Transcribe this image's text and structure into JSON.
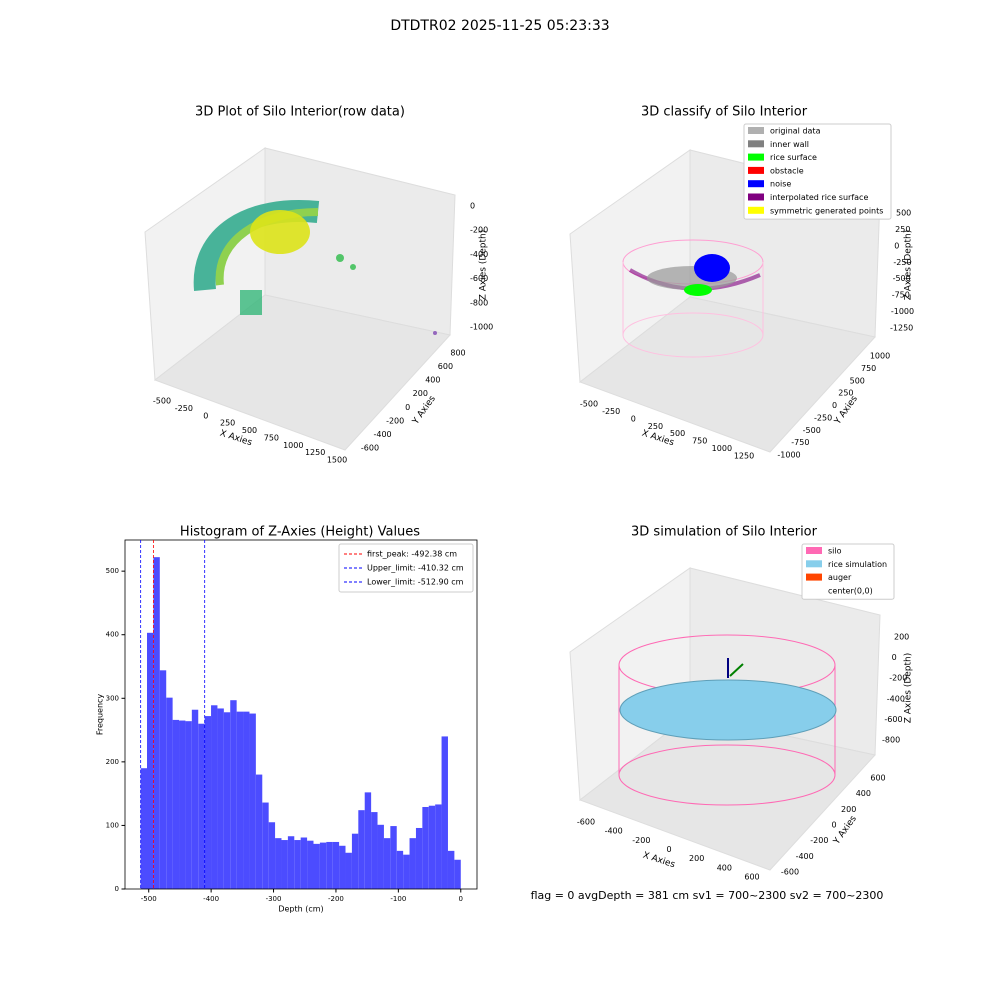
{
  "title": "DTDTR02 2025-11-25 05:23:33",
  "footer": "flag = 0     avgDepth = 381 cm  sv1 = 700~2300  sv2 = 700~2300",
  "chart_data": [
    {
      "type": "3d",
      "title": "3D Plot of Silo Interior(row data)",
      "axes": {
        "x": {
          "label": "X Axies",
          "ticks": [
            -500,
            -250,
            0,
            250,
            500,
            750,
            1000,
            1250,
            1500
          ]
        },
        "y": {
          "label": "Y Axies",
          "ticks": [
            -600,
            -400,
            -200,
            0,
            200,
            400,
            600,
            800
          ]
        },
        "z": {
          "label": "Z Axies (Depth)",
          "ticks": [
            0,
            -200,
            -400,
            -600,
            -800,
            -1000
          ]
        }
      }
    },
    {
      "type": "3d",
      "title": "3D classify of Silo Interior",
      "axes": {
        "x": {
          "label": "X Axies",
          "ticks": [
            -500,
            -250,
            0,
            250,
            500,
            750,
            1000,
            1250
          ]
        },
        "y": {
          "label": "Y Axies",
          "ticks": [
            -1000,
            -750,
            -500,
            -250,
            0,
            250,
            500,
            750,
            1000
          ]
        },
        "z": {
          "label": "Z Axies (Depth)",
          "ticks": [
            500,
            250,
            0,
            -250,
            -500,
            -750,
            -1000,
            -1250
          ]
        }
      },
      "legend": [
        {
          "name": "original data",
          "color": "#b0b0b0"
        },
        {
          "name": "inner wall",
          "color": "#808080"
        },
        {
          "name": "rice surface",
          "color": "#00ff00"
        },
        {
          "name": "obstacle",
          "color": "#ff0000"
        },
        {
          "name": "noise",
          "color": "#0000ff"
        },
        {
          "name": "interpolated rice surface",
          "color": "#800080"
        },
        {
          "name": "symmetric generated points",
          "color": "#ffff00"
        }
      ]
    },
    {
      "type": "histogram",
      "title": "Histogram of Z-Axies (Height) Values",
      "xlabel": "Depth (cm)",
      "ylabel": "Frequency",
      "color": "#4c4cff",
      "bins": [
        -513.0,
        -502.74,
        -492.48,
        -482.22,
        -471.96,
        -461.7,
        -451.44,
        -441.18,
        -430.92,
        -420.66,
        -410.4,
        -400.14,
        -389.88,
        -379.62,
        -369.36,
        -359.1,
        -348.84,
        -338.58,
        -328.32,
        -318.06,
        -307.8,
        -297.54,
        -287.28,
        -277.02,
        -266.76,
        -256.5,
        -246.24,
        -235.98,
        -225.72,
        -215.46,
        -205.2,
        -194.94,
        -184.68,
        -174.42,
        -164.16,
        -153.9,
        -143.64,
        -133.38,
        -123.12,
        -112.86,
        -102.6,
        -92.34,
        -82.08,
        -71.82,
        -61.56,
        -51.3,
        -41.04,
        -30.78,
        -20.52,
        -10.26,
        0
      ],
      "values": [
        190,
        403,
        522,
        344,
        301,
        266,
        265,
        264,
        282,
        260,
        272,
        289,
        284,
        278,
        297,
        279,
        279,
        276,
        180,
        136,
        105,
        80,
        77,
        83,
        77,
        81,
        76,
        71,
        73,
        74,
        74,
        68,
        57,
        87,
        124,
        152,
        121,
        101,
        80,
        99,
        60,
        54,
        80,
        96,
        129,
        131,
        133,
        240,
        60,
        46
      ],
      "xlim": [
        -538,
        26
      ],
      "ylim": [
        0,
        549
      ],
      "xticks": [
        -500,
        -400,
        -300,
        -200,
        -100,
        0
      ],
      "yticks": [
        0,
        100,
        200,
        300,
        400,
        500
      ],
      "vlines": [
        {
          "value": -492.38,
          "label": "first_peak: -492.38 cm",
          "color": "#ff0000"
        },
        {
          "value": -410.32,
          "label": "Upper_limit: -410.32 cm",
          "color": "#0000ff"
        },
        {
          "value": -512.9,
          "label": "Lower_limit: -512.90 cm",
          "color": "#0000ff"
        }
      ],
      "legend_loc": "upper right"
    },
    {
      "type": "3d",
      "title": "3D simulation of Silo Interior",
      "axes": {
        "x": {
          "label": "X Axies",
          "ticks": [
            -600,
            -400,
            -200,
            0,
            200,
            400,
            600
          ]
        },
        "y": {
          "label": "Y Axies",
          "ticks": [
            -600,
            -400,
            -200,
            0,
            200,
            400,
            600
          ]
        },
        "z": {
          "label": "Z Axies (Depth)",
          "ticks": [
            200,
            0,
            -200,
            -400,
            -600,
            -800
          ]
        }
      },
      "legend": [
        {
          "name": "silo",
          "color": "#ff69b4"
        },
        {
          "name": "rice simulation",
          "color": "#87ceeb"
        },
        {
          "name": "auger",
          "color": "#ff4500"
        },
        {
          "name": "center(0,0)",
          "color": "#ffffff"
        }
      ]
    }
  ]
}
